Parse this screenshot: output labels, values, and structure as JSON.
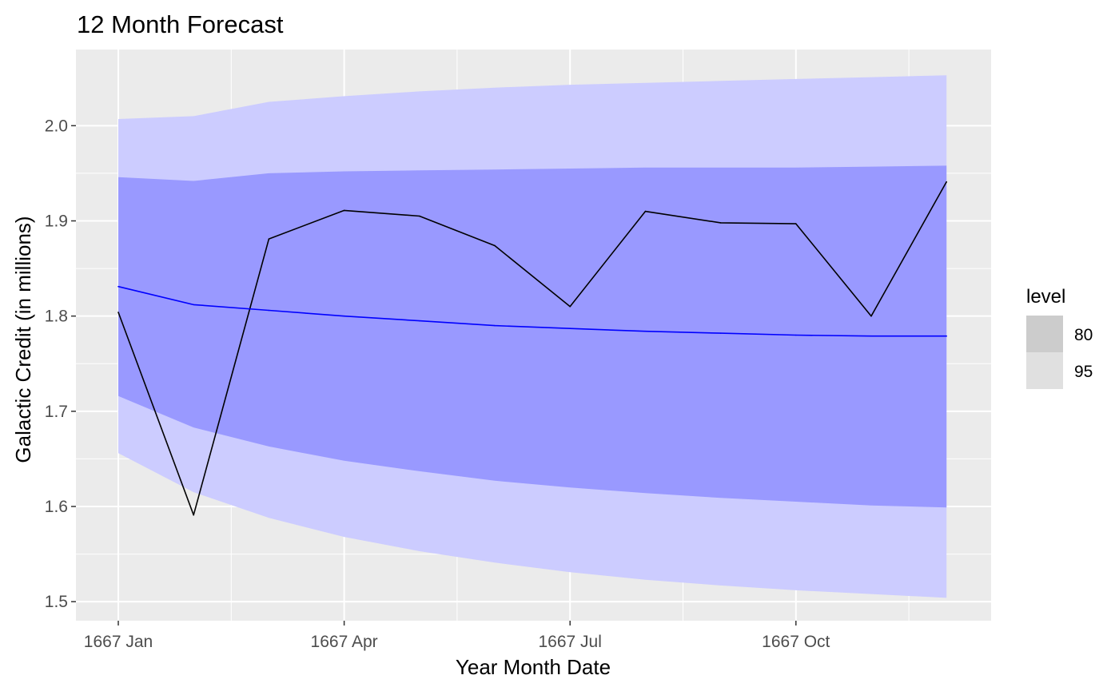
{
  "chart_data": {
    "type": "line",
    "title": "12 Month Forecast",
    "xlabel": "Year Month Date",
    "ylabel": "Galactic Credit (in millions)",
    "x": [
      "1667 Jan",
      "1667 Feb",
      "1667 Mar",
      "1667 Apr",
      "1667 May",
      "1667 Jun",
      "1667 Jul",
      "1667 Aug",
      "1667 Sep",
      "1667 Oct",
      "1667 Nov",
      "1667 Dec"
    ],
    "x_ticks": [
      "1667 Jan",
      "1667 Apr",
      "1667 Jul",
      "1667 Oct"
    ],
    "ylim": [
      1.48,
      2.08
    ],
    "y_ticks": [
      "1.5",
      "1.6",
      "1.7",
      "1.8",
      "1.9",
      "2.0"
    ],
    "grid": true,
    "series": [
      {
        "role": "actual",
        "color": "#000000",
        "values": [
          1.804,
          1.591,
          1.881,
          1.911,
          1.905,
          1.874,
          1.81,
          1.91,
          1.898,
          1.897,
          1.8,
          1.941
        ]
      },
      {
        "role": "forecast_mean",
        "color": "#0000ff",
        "values": [
          1.831,
          1.812,
          1.806,
          1.8,
          1.795,
          1.79,
          1.787,
          1.784,
          1.782,
          1.78,
          1.779,
          1.779
        ]
      }
    ],
    "bands": [
      {
        "level": "95",
        "color": "#ccccff",
        "lower": [
          1.656,
          1.615,
          1.588,
          1.568,
          1.553,
          1.541,
          1.531,
          1.523,
          1.517,
          1.512,
          1.508,
          1.504
        ],
        "upper": [
          2.007,
          2.01,
          2.025,
          2.031,
          2.036,
          2.04,
          2.043,
          2.045,
          2.047,
          2.049,
          2.051,
          2.053
        ]
      },
      {
        "level": "80",
        "color": "#9999ff",
        "lower": [
          1.716,
          1.683,
          1.663,
          1.648,
          1.637,
          1.627,
          1.62,
          1.614,
          1.609,
          1.605,
          1.601,
          1.599
        ],
        "upper": [
          1.946,
          1.942,
          1.95,
          1.952,
          1.953,
          1.954,
          1.955,
          1.956,
          1.956,
          1.956,
          1.957,
          1.958
        ]
      }
    ],
    "legend": {
      "title": "level",
      "position": "right",
      "items": [
        {
          "label": "80",
          "color": "#cccccc"
        },
        {
          "label": "95",
          "color": "#e0e0e0"
        }
      ]
    }
  }
}
